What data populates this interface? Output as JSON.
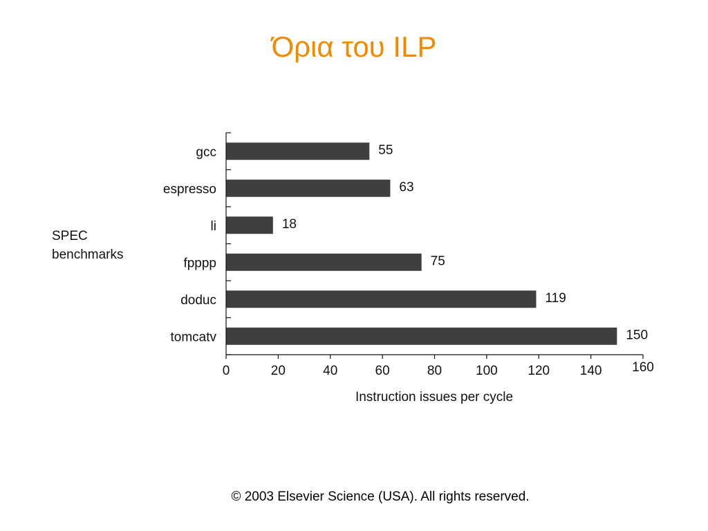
{
  "slide": {
    "title": "Όρια του ILP",
    "copyright": "© 2003 Elsevier Science (USA). All rights reserved."
  },
  "chart_data": {
    "type": "bar",
    "orientation": "horizontal",
    "categories": [
      "gcc",
      "espresso",
      "li",
      "fpppp",
      "doduc",
      "tomcatv"
    ],
    "values": [
      55,
      63,
      18,
      75,
      119,
      150
    ],
    "data_labels": [
      "55",
      "63",
      "18",
      "75",
      "119",
      "150"
    ],
    "xlabel": "Instruction issues per cycle",
    "ylabel": "SPEC\nbenchmarks",
    "ylabel_lines": [
      "SPEC",
      "benchmarks"
    ],
    "xlim": [
      0,
      160
    ],
    "xticks": [
      "0",
      "20",
      "40",
      "60",
      "80",
      "100",
      "120",
      "140",
      "160"
    ],
    "xtick_values": [
      0,
      20,
      40,
      60,
      80,
      100,
      120,
      140,
      160
    ],
    "bar_color": "#3f3f3f",
    "grid": false,
    "legend": "none"
  }
}
